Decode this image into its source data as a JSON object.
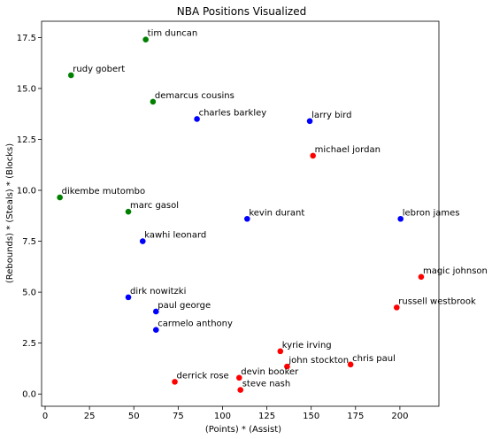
{
  "chart_data": {
    "type": "scatter",
    "title": "NBA Positions Visualized",
    "xlabel": "(Points) * (Assist)",
    "ylabel": "(Rebounds) * (Steals) * (Blocks)",
    "xlim": [
      -2,
      222
    ],
    "ylim": [
      -0.6,
      18.3
    ],
    "xticks": [
      0,
      25,
      50,
      75,
      100,
      125,
      150,
      175,
      200
    ],
    "yticks": [
      0.0,
      2.5,
      5.0,
      7.5,
      10.0,
      12.5,
      15.0,
      17.5
    ],
    "xtick_labels": [
      "0",
      "25",
      "50",
      "75",
      "100",
      "125",
      "150",
      "175",
      "200"
    ],
    "ytick_labels": [
      "0.0",
      "2.5",
      "5.0",
      "7.5",
      "10.0",
      "12.5",
      "15.0",
      "17.5"
    ],
    "colors": {
      "green": "#008000",
      "blue": "#0000ff",
      "red": "#ff0000"
    },
    "points": [
      {
        "label": "tim duncan",
        "x": 56.7,
        "y": 17.4,
        "color": "green"
      },
      {
        "label": "rudy gobert",
        "x": 14.6,
        "y": 15.65,
        "color": "green"
      },
      {
        "label": "demarcus cousins",
        "x": 60.8,
        "y": 14.35,
        "color": "green"
      },
      {
        "label": "dikembe mutombo",
        "x": 8.3,
        "y": 9.65,
        "color": "green"
      },
      {
        "label": "marc gasol",
        "x": 46.9,
        "y": 8.95,
        "color": "green"
      },
      {
        "label": "charles barkley",
        "x": 85.6,
        "y": 13.5,
        "color": "blue"
      },
      {
        "label": "larry bird",
        "x": 149.2,
        "y": 13.4,
        "color": "blue"
      },
      {
        "label": "kevin durant",
        "x": 113.9,
        "y": 8.6,
        "color": "blue"
      },
      {
        "label": "lebron james",
        "x": 200.4,
        "y": 8.6,
        "color": "blue"
      },
      {
        "label": "kawhi leonard",
        "x": 55.0,
        "y": 7.5,
        "color": "blue"
      },
      {
        "label": "dirk nowitzki",
        "x": 46.9,
        "y": 4.75,
        "color": "blue"
      },
      {
        "label": "paul george",
        "x": 62.5,
        "y": 4.05,
        "color": "blue"
      },
      {
        "label": "carmelo anthony",
        "x": 62.5,
        "y": 3.15,
        "color": "blue"
      },
      {
        "label": "michael jordan",
        "x": 151.0,
        "y": 11.7,
        "color": "red"
      },
      {
        "label": "magic johnson",
        "x": 212.0,
        "y": 5.75,
        "color": "red"
      },
      {
        "label": "russell westbrook",
        "x": 198.2,
        "y": 4.25,
        "color": "red"
      },
      {
        "label": "kyrie irving",
        "x": 132.6,
        "y": 2.1,
        "color": "red"
      },
      {
        "label": "john stockton",
        "x": 136.4,
        "y": 1.35,
        "color": "red"
      },
      {
        "label": "chris paul",
        "x": 172.2,
        "y": 1.45,
        "color": "red"
      },
      {
        "label": "derrick rose",
        "x": 73.1,
        "y": 0.6,
        "color": "red"
      },
      {
        "label": "devin booker",
        "x": 109.4,
        "y": 0.8,
        "color": "red"
      },
      {
        "label": "steve nash",
        "x": 110.1,
        "y": 0.2,
        "color": "red"
      }
    ]
  }
}
